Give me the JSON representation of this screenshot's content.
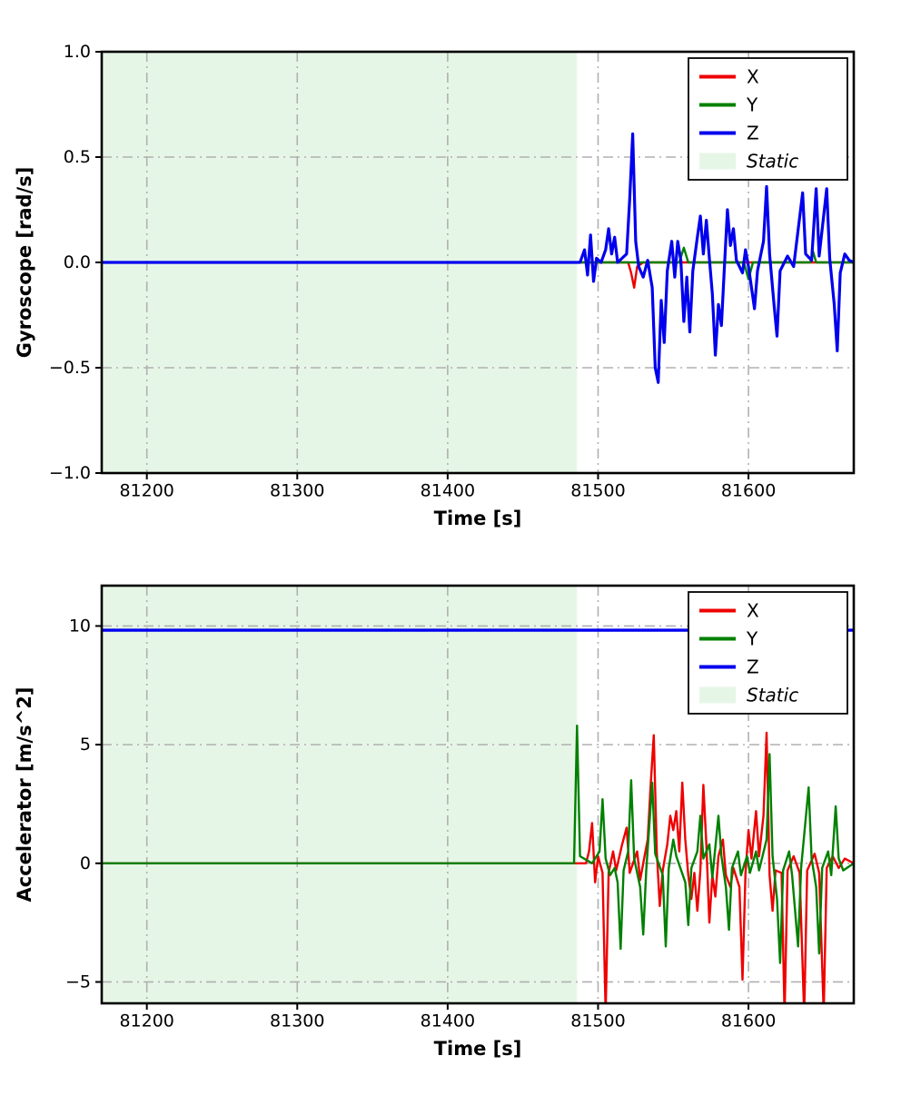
{
  "figure": {
    "background": "#ffffff"
  },
  "chart_data": [
    {
      "type": "line",
      "title": "",
      "xlabel": "Time [s]",
      "ylabel": "Gyroscope [rad/s]",
      "xlim": [
        81170,
        81670
      ],
      "ylim": [
        -1.0,
        1.0
      ],
      "xticks": [
        81200,
        81300,
        81400,
        81500,
        81600
      ],
      "xtick_labels": [
        "81200",
        "81300",
        "81400",
        "81500",
        "81600"
      ],
      "yticks": [
        -1.0,
        -0.5,
        0.0,
        0.5,
        1.0
      ],
      "ytick_labels": [
        "−1.0",
        "−0.5",
        "0.0",
        "0.5",
        "1.0"
      ],
      "grid": true,
      "grid_color": "#b0b0b0",
      "legend_position": "upper right",
      "static_region": {
        "label": "Static",
        "x0": 81170,
        "x1": 81486,
        "color": "#e6f6e6"
      },
      "series": [
        {
          "name": "X",
          "color": "#ee0000",
          "line_width": 2.4,
          "points": [
            [
              81170,
              0
            ],
            [
              81492,
              0
            ],
            [
              81520,
              0
            ],
            [
              81522,
              -0.05
            ],
            [
              81524,
              -0.12
            ],
            [
              81526,
              -0.02
            ],
            [
              81530,
              0
            ],
            [
              81670,
              0
            ]
          ]
        },
        {
          "name": "Y",
          "color": "#008000",
          "line_width": 2.4,
          "points": [
            [
              81170,
              0
            ],
            [
              81554,
              0
            ],
            [
              81557,
              0.07
            ],
            [
              81560,
              0
            ],
            [
              81597,
              0
            ],
            [
              81600,
              -0.08
            ],
            [
              81603,
              0
            ],
            [
              81641,
              0
            ],
            [
              81643,
              0.05
            ],
            [
              81645,
              0
            ],
            [
              81670,
              0
            ]
          ]
        },
        {
          "name": "Z",
          "color": "#0000ee",
          "line_width": 3.2,
          "points": [
            [
              81170,
              0
            ],
            [
              81488,
              0
            ],
            [
              81491,
              0.06
            ],
            [
              81493,
              -0.06
            ],
            [
              81495,
              0.13
            ],
            [
              81497,
              -0.09
            ],
            [
              81499,
              0.02
            ],
            [
              81502,
              0
            ],
            [
              81505,
              0.06
            ],
            [
              81507,
              0.16
            ],
            [
              81509,
              0.04
            ],
            [
              81511,
              0.12
            ],
            [
              81513,
              0
            ],
            [
              81519,
              0.04
            ],
            [
              81521,
              0.3
            ],
            [
              81523,
              0.61
            ],
            [
              81525,
              0.1
            ],
            [
              81527,
              -0.02
            ],
            [
              81530,
              -0.07
            ],
            [
              81533,
              0.01
            ],
            [
              81536,
              -0.12
            ],
            [
              81538,
              -0.5
            ],
            [
              81540,
              -0.57
            ],
            [
              81542,
              -0.18
            ],
            [
              81544,
              -0.38
            ],
            [
              81546,
              -0.04
            ],
            [
              81549,
              0.1
            ],
            [
              81551,
              -0.07
            ],
            [
              81553,
              0.1
            ],
            [
              81555,
              0.01
            ],
            [
              81557,
              -0.28
            ],
            [
              81559,
              -0.07
            ],
            [
              81561,
              -0.33
            ],
            [
              81563,
              -0.04
            ],
            [
              81566,
              0.12
            ],
            [
              81568,
              0.22
            ],
            [
              81570,
              0.04
            ],
            [
              81572,
              0.2
            ],
            [
              81574,
              0.02
            ],
            [
              81576,
              -0.15
            ],
            [
              81578,
              -0.44
            ],
            [
              81580,
              -0.2
            ],
            [
              81582,
              -0.3
            ],
            [
              81584,
              -0.02
            ],
            [
              81586,
              0.25
            ],
            [
              81588,
              0.08
            ],
            [
              81590,
              0.16
            ],
            [
              81592,
              0.01
            ],
            [
              81596,
              -0.05
            ],
            [
              81598,
              0.06
            ],
            [
              81600,
              -0.02
            ],
            [
              81604,
              -0.22
            ],
            [
              81606,
              -0.04
            ],
            [
              81610,
              0.1
            ],
            [
              81612,
              0.36
            ],
            [
              81614,
              0.04
            ],
            [
              81617,
              -0.2
            ],
            [
              81619,
              -0.35
            ],
            [
              81621,
              -0.04
            ],
            [
              81626,
              0.03
            ],
            [
              81630,
              -0.02
            ],
            [
              81636,
              0.33
            ],
            [
              81638,
              0.04
            ],
            [
              81642,
              0.01
            ],
            [
              81645,
              0.35
            ],
            [
              81647,
              0.03
            ],
            [
              81652,
              0.35
            ],
            [
              81654,
              0.02
            ],
            [
              81657,
              -0.2
            ],
            [
              81659,
              -0.42
            ],
            [
              81661,
              -0.05
            ],
            [
              81664,
              0.04
            ],
            [
              81667,
              0.01
            ],
            [
              81670,
              0
            ]
          ]
        }
      ]
    },
    {
      "type": "line",
      "title": "",
      "xlabel": "Time [s]",
      "ylabel": "Accelerator [m/s^2]",
      "xlim": [
        81170,
        81670
      ],
      "ylim": [
        -5.9,
        11.7
      ],
      "xticks": [
        81200,
        81300,
        81400,
        81500,
        81600
      ],
      "xtick_labels": [
        "81200",
        "81300",
        "81400",
        "81500",
        "81600"
      ],
      "yticks": [
        -5,
        0,
        5,
        10
      ],
      "ytick_labels": [
        "−5",
        "0",
        "5",
        "10"
      ],
      "grid": true,
      "grid_color": "#b0b0b0",
      "legend_position": "upper right",
      "static_region": {
        "label": "Static",
        "x0": 81170,
        "x1": 81486,
        "color": "#e6f6e6"
      },
      "series": [
        {
          "name": "X",
          "color": "#ee0000",
          "line_width": 2.4,
          "points": [
            [
              81170,
              0
            ],
            [
              81492,
              0
            ],
            [
              81494,
              0.5
            ],
            [
              81496,
              1.7
            ],
            [
              81498,
              -0.8
            ],
            [
              81500,
              0.3
            ],
            [
              81503,
              -0.4
            ],
            [
              81505,
              -6.3
            ],
            [
              81507,
              -0.4
            ],
            [
              81510,
              0.5
            ],
            [
              81512,
              -0.3
            ],
            [
              81516,
              0.8
            ],
            [
              81519,
              1.5
            ],
            [
              81521,
              -0.4
            ],
            [
              81526,
              0.5
            ],
            [
              81528,
              -0.7
            ],
            [
              81533,
              1.0
            ],
            [
              81535,
              3.3
            ],
            [
              81537,
              5.4
            ],
            [
              81539,
              0.5
            ],
            [
              81541,
              -1.8
            ],
            [
              81543,
              -0.3
            ],
            [
              81546,
              0.8
            ],
            [
              81548,
              2.0
            ],
            [
              81550,
              1.4
            ],
            [
              81552,
              2.2
            ],
            [
              81554,
              0.5
            ],
            [
              81556,
              3.4
            ],
            [
              81558,
              1.0
            ],
            [
              81560,
              -0.5
            ],
            [
              81562,
              -1.5
            ],
            [
              81564,
              -0.4
            ],
            [
              81566,
              -2.0
            ],
            [
              81568,
              -0.3
            ],
            [
              81570,
              3.3
            ],
            [
              81572,
              0.8
            ],
            [
              81574,
              -2.5
            ],
            [
              81576,
              -0.5
            ],
            [
              81578,
              -1.4
            ],
            [
              81580,
              0.3
            ],
            [
              81583,
              1.0
            ],
            [
              81585,
              -0.5
            ],
            [
              81588,
              -1.0
            ],
            [
              81590,
              -0.2
            ],
            [
              81594,
              -1.0
            ],
            [
              81596,
              -4.9
            ],
            [
              81598,
              -0.4
            ],
            [
              81600,
              1.4
            ],
            [
              81602,
              0.2
            ],
            [
              81605,
              2.2
            ],
            [
              81607,
              0.3
            ],
            [
              81610,
              2.0
            ],
            [
              81612,
              5.5
            ],
            [
              81614,
              -0.5
            ],
            [
              81616,
              -2.0
            ],
            [
              81618,
              -0.3
            ],
            [
              81622,
              -0.4
            ],
            [
              81624,
              -6.4
            ],
            [
              81626,
              -0.3
            ],
            [
              81630,
              0.3
            ],
            [
              81634,
              -0.4
            ],
            [
              81637,
              -6.4
            ],
            [
              81639,
              -0.3
            ],
            [
              81644,
              0.4
            ],
            [
              81647,
              -0.4
            ],
            [
              81650,
              -6.3
            ],
            [
              81652,
              -0.2
            ],
            [
              81656,
              0.3
            ],
            [
              81660,
              -0.2
            ],
            [
              81664,
              0.2
            ],
            [
              81670,
              0
            ]
          ]
        },
        {
          "name": "Y",
          "color": "#008000",
          "line_width": 2.4,
          "points": [
            [
              81170,
              0
            ],
            [
              81484,
              0
            ],
            [
              81486,
              5.8
            ],
            [
              81488,
              0.3
            ],
            [
              81496,
              0
            ],
            [
              81501,
              0.5
            ],
            [
              81503,
              2.7
            ],
            [
              81505,
              0.2
            ],
            [
              81508,
              -0.5
            ],
            [
              81511,
              -0.2
            ],
            [
              81513,
              -0.8
            ],
            [
              81515,
              -3.6
            ],
            [
              81517,
              -0.3
            ],
            [
              81520,
              0.5
            ],
            [
              81522,
              3.5
            ],
            [
              81524,
              0.2
            ],
            [
              81528,
              -1.0
            ],
            [
              81530,
              -3.0
            ],
            [
              81532,
              -0.3
            ],
            [
              81536,
              3.4
            ],
            [
              81538,
              0.4
            ],
            [
              81543,
              -0.5
            ],
            [
              81545,
              -3.5
            ],
            [
              81547,
              -0.2
            ],
            [
              81550,
              1.0
            ],
            [
              81552,
              0.3
            ],
            [
              81558,
              -0.8
            ],
            [
              81560,
              -2.6
            ],
            [
              81562,
              -0.2
            ],
            [
              81566,
              0.5
            ],
            [
              81568,
              2.0
            ],
            [
              81570,
              0.2
            ],
            [
              81574,
              0.8
            ],
            [
              81576,
              -0.6
            ],
            [
              81580,
              2.0
            ],
            [
              81582,
              0.3
            ],
            [
              81585,
              -1.0
            ],
            [
              81587,
              -2.8
            ],
            [
              81589,
              -0.2
            ],
            [
              81593,
              0.5
            ],
            [
              81595,
              -0.5
            ],
            [
              81599,
              0.3
            ],
            [
              81601,
              -0.4
            ],
            [
              81605,
              0.5
            ],
            [
              81607,
              -0.3
            ],
            [
              81612,
              1.0
            ],
            [
              81614,
              4.6
            ],
            [
              81616,
              0.3
            ],
            [
              81619,
              -1.5
            ],
            [
              81621,
              -4.2
            ],
            [
              81623,
              -0.3
            ],
            [
              81627,
              0.5
            ],
            [
              81629,
              -0.5
            ],
            [
              81633,
              -3.5
            ],
            [
              81635,
              -0.2
            ],
            [
              81640,
              3.2
            ],
            [
              81642,
              0.2
            ],
            [
              81645,
              -1.0
            ],
            [
              81647,
              -3.8
            ],
            [
              81649,
              -0.2
            ],
            [
              81653,
              0.5
            ],
            [
              81655,
              -0.5
            ],
            [
              81658,
              2.4
            ],
            [
              81660,
              0.2
            ],
            [
              81663,
              -0.3
            ],
            [
              81670,
              0
            ]
          ]
        },
        {
          "name": "Z",
          "color": "#0000ee",
          "line_width": 3.4,
          "points": [
            [
              81170,
              9.82
            ],
            [
              81670,
              9.82
            ]
          ]
        }
      ]
    }
  ]
}
